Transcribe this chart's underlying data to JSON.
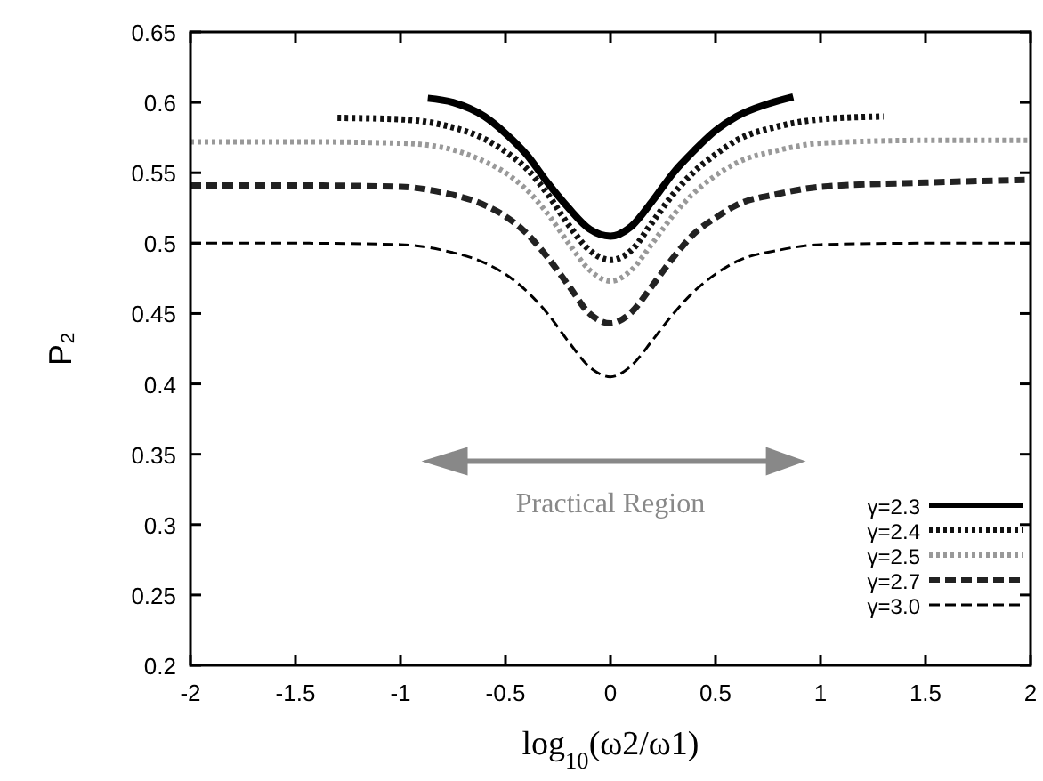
{
  "chart_data": {
    "type": "line",
    "xlabel": "log$_{10}$(ω2/ω1)",
    "ylabel": "P₂",
    "xlim": [
      -2,
      2
    ],
    "ylim": [
      0.2,
      0.65
    ],
    "xticks": [
      -2,
      -1.5,
      -1,
      -0.5,
      0,
      0.5,
      1,
      1.5,
      2
    ],
    "yticks": [
      0.2,
      0.25,
      0.3,
      0.35,
      0.4,
      0.45,
      0.5,
      0.55,
      0.6,
      0.65
    ],
    "grid": false,
    "legend": "bottom right",
    "marker": "none",
    "annotations": [
      "Practical Region"
    ],
    "series": [
      {
        "name": "γ=2.3",
        "color": "#000000",
        "line_style": "solid",
        "x": [
          -0.87,
          -0.75,
          -0.6,
          -0.5,
          -0.4,
          -0.3,
          -0.2,
          -0.1,
          0,
          0.1,
          0.2,
          0.3,
          0.4,
          0.5,
          0.6,
          0.75,
          0.87
        ],
        "values": [
          0.603,
          0.6,
          0.59,
          0.578,
          0.563,
          0.543,
          0.525,
          0.51,
          0.505,
          0.512,
          0.53,
          0.55,
          0.566,
          0.58,
          0.59,
          0.599,
          0.604
        ]
      },
      {
        "name": "γ=2.4",
        "color": "#111111",
        "line_style": "dotted",
        "x": [
          -1.3,
          -1,
          -0.8,
          -0.6,
          -0.5,
          -0.4,
          -0.3,
          -0.2,
          -0.1,
          0,
          0.1,
          0.2,
          0.3,
          0.4,
          0.5,
          0.6,
          0.8,
          1,
          1.3
        ],
        "values": [
          0.589,
          0.588,
          0.584,
          0.574,
          0.565,
          0.553,
          0.535,
          0.513,
          0.495,
          0.488,
          0.495,
          0.515,
          0.535,
          0.551,
          0.563,
          0.573,
          0.583,
          0.588,
          0.59
        ]
      },
      {
        "name": "γ=2.5",
        "color": "#999999",
        "line_style": "dotted",
        "x": [
          -2,
          -1.5,
          -1,
          -0.8,
          -0.6,
          -0.5,
          -0.4,
          -0.3,
          -0.2,
          -0.1,
          0,
          0.1,
          0.2,
          0.3,
          0.4,
          0.5,
          0.6,
          0.8,
          1,
          1.5,
          2
        ],
        "values": [
          0.572,
          0.572,
          0.571,
          0.568,
          0.558,
          0.55,
          0.538,
          0.521,
          0.5,
          0.481,
          0.473,
          0.481,
          0.5,
          0.52,
          0.536,
          0.548,
          0.557,
          0.566,
          0.571,
          0.573,
          0.573
        ]
      },
      {
        "name": "γ=2.7",
        "color": "#222222",
        "line_style": "dashed",
        "x": [
          -2,
          -1.5,
          -1,
          -0.8,
          -0.6,
          -0.5,
          -0.4,
          -0.3,
          -0.2,
          -0.1,
          0,
          0.1,
          0.2,
          0.3,
          0.4,
          0.5,
          0.6,
          0.8,
          1,
          1.5,
          2
        ],
        "values": [
          0.541,
          0.541,
          0.54,
          0.536,
          0.527,
          0.519,
          0.507,
          0.49,
          0.47,
          0.45,
          0.443,
          0.451,
          0.47,
          0.49,
          0.507,
          0.518,
          0.527,
          0.535,
          0.54,
          0.543,
          0.545
        ]
      },
      {
        "name": "γ=3.0",
        "color": "#000000",
        "line_style": "dashed",
        "x": [
          -2,
          -1.5,
          -1,
          -0.8,
          -0.6,
          -0.5,
          -0.4,
          -0.3,
          -0.2,
          -0.1,
          0,
          0.1,
          0.2,
          0.3,
          0.4,
          0.5,
          0.6,
          0.8,
          1,
          1.5,
          2
        ],
        "values": [
          0.5,
          0.5,
          0.499,
          0.495,
          0.486,
          0.478,
          0.466,
          0.45,
          0.43,
          0.412,
          0.405,
          0.413,
          0.431,
          0.45,
          0.466,
          0.478,
          0.487,
          0.495,
          0.499,
          0.5,
          0.5
        ]
      }
    ]
  }
}
